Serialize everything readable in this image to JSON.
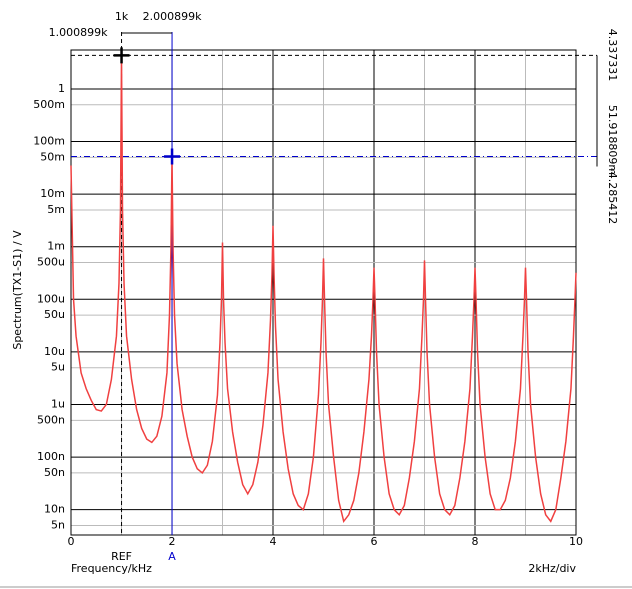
{
  "chart_data": {
    "type": "line",
    "y_label": "Spectrum(TX1-S1) / V",
    "x_label": "Frequency/kHz",
    "scale_label": "2kHz/div",
    "xlim": [
      0,
      10
    ],
    "xticks": [
      0,
      2,
      4,
      6,
      8,
      10
    ],
    "minor_xticks": [
      1,
      3,
      5,
      7,
      9
    ],
    "log_y": true,
    "ylim": [
      3.3e-09,
      5.5
    ],
    "yticks": [
      1,
      {
        "value": 0.5,
        "label": "500m"
      },
      {
        "value": 0.1,
        "label": "100m"
      },
      {
        "value": 0.05,
        "label": "50m"
      },
      {
        "value": 0.01,
        "label": "10m"
      },
      {
        "value": 0.005,
        "label": "5m"
      },
      {
        "value": 0.001,
        "label": "1m"
      },
      {
        "value": 0.0005,
        "label": "500u"
      },
      {
        "value": 0.0001,
        "label": "100u"
      },
      {
        "value": 5e-05,
        "label": "50u"
      },
      {
        "value": 1e-05,
        "label": "10u"
      },
      {
        "value": 5e-06,
        "label": "5u"
      },
      {
        "value": 1e-06,
        "label": "1u"
      },
      {
        "value": 5e-07,
        "label": "500n"
      },
      {
        "value": 1e-07,
        "label": "100n"
      },
      {
        "value": 5e-08,
        "label": "50n"
      },
      {
        "value": 1e-08,
        "label": "10n"
      },
      {
        "value": 5e-09,
        "label": "5n"
      }
    ],
    "grid": true,
    "cursors": [
      {
        "name": "REF",
        "color": "#000000",
        "x": 1.000899,
        "x_label": "1.000899k",
        "y": 4.337331,
        "y_label": "4.337331"
      },
      {
        "name": "A",
        "color": "#0000cc",
        "x": 2.000899,
        "x_label": "2.000899k",
        "y": 0.051918809,
        "y_label": "51.918809m"
      }
    ],
    "delta_x_label": "1k",
    "delta_y_label": "-4.285412",
    "series": [
      {
        "color": "#f04040",
        "x": [
          0,
          0.05,
          0.1,
          0.2,
          0.3,
          0.4,
          0.5,
          0.6,
          0.7,
          0.8,
          0.9,
          0.95,
          0.98,
          1.0,
          1.02,
          1.05,
          1.1,
          1.2,
          1.3,
          1.4,
          1.5,
          1.6,
          1.7,
          1.8,
          1.9,
          1.95,
          1.98,
          2.0,
          2.02,
          2.05,
          2.1,
          2.2,
          2.3,
          2.4,
          2.5,
          2.6,
          2.7,
          2.8,
          2.9,
          2.95,
          2.98,
          3.0,
          3.02,
          3.05,
          3.1,
          3.2,
          3.3,
          3.4,
          3.5,
          3.6,
          3.7,
          3.8,
          3.9,
          3.95,
          3.98,
          4.0,
          4.02,
          4.05,
          4.1,
          4.2,
          4.3,
          4.4,
          4.5,
          4.6,
          4.7,
          4.8,
          4.9,
          4.95,
          4.98,
          5.0,
          5.02,
          5.05,
          5.1,
          5.2,
          5.3,
          5.4,
          5.5,
          5.6,
          5.7,
          5.8,
          5.9,
          5.95,
          5.98,
          6.0,
          6.02,
          6.05,
          6.1,
          6.2,
          6.3,
          6.4,
          6.5,
          6.6,
          6.7,
          6.8,
          6.9,
          6.95,
          6.98,
          7.0,
          7.02,
          7.05,
          7.1,
          7.2,
          7.3,
          7.4,
          7.5,
          7.6,
          7.7,
          7.8,
          7.9,
          7.95,
          7.98,
          8.0,
          8.02,
          8.05,
          8.1,
          8.2,
          8.3,
          8.4,
          8.5,
          8.6,
          8.7,
          8.8,
          8.9,
          8.95,
          8.98,
          9.0,
          9.02,
          9.05,
          9.1,
          9.2,
          9.3,
          9.4,
          9.5,
          9.6,
          9.7,
          9.8,
          9.9,
          9.95,
          9.98,
          10.0
        ],
        "values": [
          0.035,
          0.0001,
          2e-05,
          4e-06,
          2e-06,
          1.2e-06,
          8e-07,
          7.5e-07,
          1e-06,
          3e-06,
          2e-05,
          0.0002,
          0.005,
          4.3,
          0.005,
          0.0002,
          2e-05,
          3e-06,
          8e-07,
          3.5e-07,
          2.2e-07,
          1.9e-07,
          2.5e-07,
          6e-07,
          4e-06,
          5e-05,
          0.001,
          0.052,
          0.001,
          5e-05,
          6e-06,
          8e-07,
          2.5e-07,
          1e-07,
          6e-08,
          5e-08,
          7e-08,
          2e-07,
          1.5e-06,
          1.5e-05,
          0.0001,
          0.0012,
          0.0001,
          1.5e-05,
          2e-06,
          3e-07,
          8e-08,
          3e-08,
          2e-08,
          3e-08,
          8e-08,
          4e-07,
          4e-06,
          4e-05,
          0.0003,
          0.0025,
          0.0003,
          3e-05,
          3e-06,
          3e-07,
          6e-08,
          2e-08,
          1.2e-08,
          1e-08,
          2e-08,
          1e-07,
          1.5e-06,
          1.5e-05,
          0.0001,
          0.0006,
          0.0001,
          1e-05,
          1e-06,
          1e-07,
          1.5e-08,
          6e-09,
          8e-09,
          1.5e-08,
          5e-08,
          3e-07,
          3e-06,
          2e-05,
          0.0001,
          0.0004,
          0.0001,
          1e-05,
          1e-06,
          1e-07,
          2e-08,
          1e-08,
          8e-09,
          1.2e-08,
          4e-08,
          2e-07,
          2e-06,
          2e-05,
          0.0001,
          0.00055,
          0.0001,
          1e-05,
          1e-06,
          1e-07,
          2e-08,
          1e-08,
          8e-09,
          1.2e-08,
          4e-08,
          2e-07,
          2e-06,
          2e-05,
          0.0001,
          0.0004,
          0.0001,
          1e-05,
          1e-06,
          1e-07,
          2e-08,
          1e-08,
          1e-08,
          1.5e-08,
          4e-08,
          2e-07,
          2e-06,
          2e-05,
          0.0001,
          0.0004,
          0.0001,
          1e-05,
          1e-06,
          1e-07,
          2e-08,
          8e-09,
          6e-09,
          1e-08,
          4e-08,
          2e-07,
          2e-06,
          2e-05,
          0.0001,
          0.00032
        ]
      }
    ]
  }
}
